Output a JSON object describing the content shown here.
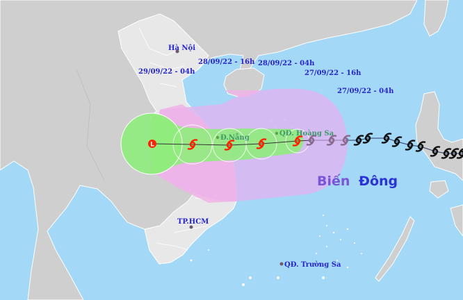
{
  "map": {
    "colors": {
      "sea": "#a3d8f7",
      "land": "#cfcfcf",
      "vietnam_land": "#e4e4e4",
      "forecast_cone": "#d9b8f0",
      "coastal_warning": "#f0b3e8",
      "strong_wind_zone": "#8fec7c",
      "forecast_track_symbol": "#ff2200",
      "past_track_symbol_recent": "#8a6a8e",
      "past_track_symbol": "#111111"
    },
    "places": {
      "hanoi": "Hà Nội",
      "danang": "Đ.Nẵng",
      "hoangsa": "QĐ. Hoàng Sa",
      "hcm": "TP.HCM",
      "truongsa": "QĐ. Trường Sa"
    },
    "sea_label": {
      "part1": "Biến",
      "part2": "Đông"
    },
    "timestamps": [
      "29/09/22 - 04h",
      "28/09/22 - 16h",
      "28/09/22 - 04h",
      "27/09/22 - 16h",
      "27/09/22 - 04h"
    ],
    "forecast_symbols": {
      "low_pressure": "L",
      "storm": "storm-icon"
    }
  }
}
